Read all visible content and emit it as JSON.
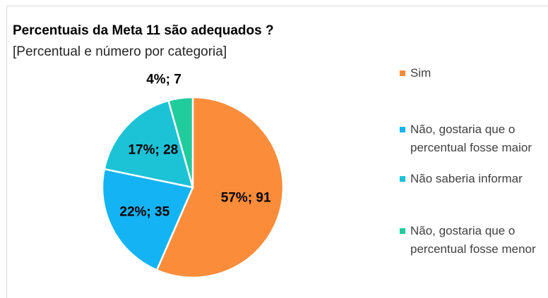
{
  "chart_data": {
    "type": "pie",
    "title": "Percentuais da Meta 11 são adequados ?",
    "subtitle": "[Percentual e número por categoria]",
    "categories": [
      "Sim",
      "Não, gostaria que o percentual fosse maior",
      "Não saberia informar",
      "Não, gostaria que o percentual fosse menor"
    ],
    "values": [
      91,
      35,
      28,
      7
    ],
    "value_labels": [
      "57%; 91",
      "22%; 35",
      "17%; 28",
      "4%; 7"
    ],
    "colors": [
      "#fb8c3a",
      "#14b4f4",
      "#1cc2d6",
      "#20cc9c"
    ],
    "legend": "right"
  }
}
